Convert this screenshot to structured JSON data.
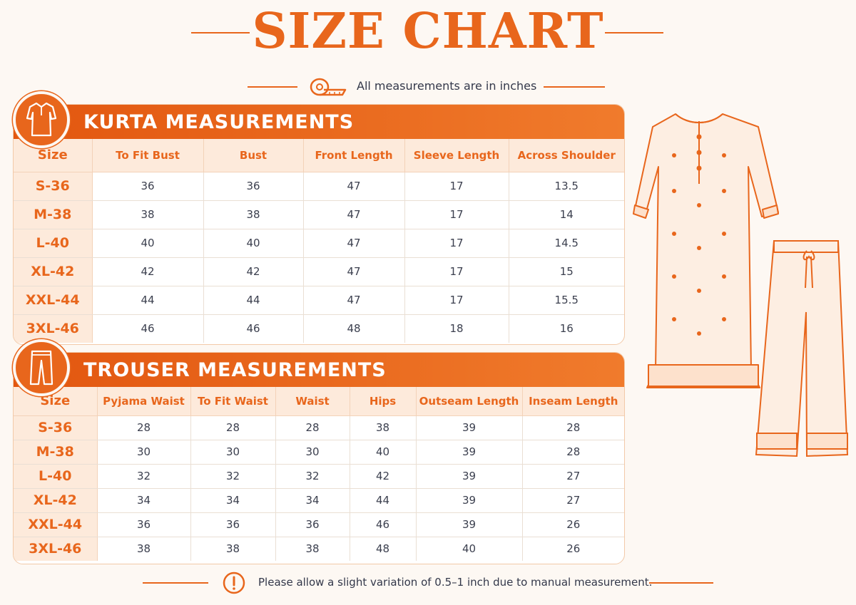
{
  "title": "SIZE CHART",
  "subtitle": "All measurements are in inches",
  "footer_note": "Please allow a slight variation of 0.5–1 inch due to manual measurement.",
  "colors": {
    "accent": "#e8661c",
    "header_bg": "#fdeadb",
    "text": "#2c2f3e"
  },
  "icons": {
    "subtitle": "measuring-tape-icon",
    "kurta": "kurta-icon",
    "trouser": "trouser-icon",
    "footer": "warning-icon"
  },
  "kurta": {
    "heading": "KURTA MEASUREMENTS",
    "columns": [
      "Size",
      "To Fit Bust",
      "Bust",
      "Front Length",
      "Sleeve Length",
      "Across Shoulder"
    ],
    "rows": [
      [
        "S-36",
        "36",
        "36",
        "47",
        "17",
        "13.5"
      ],
      [
        "M-38",
        "38",
        "38",
        "47",
        "17",
        "14"
      ],
      [
        "L-40",
        "40",
        "40",
        "47",
        "17",
        "14.5"
      ],
      [
        "XL-42",
        "42",
        "42",
        "47",
        "17",
        "15"
      ],
      [
        "XXL-44",
        "44",
        "44",
        "47",
        "17",
        "15.5"
      ],
      [
        "3XL-46",
        "46",
        "46",
        "48",
        "18",
        "16"
      ]
    ]
  },
  "trouser": {
    "heading": "TROUSER MEASUREMENTS",
    "columns": [
      "Size",
      "Pyjama Waist",
      "To Fit Waist",
      "Waist",
      "Hips",
      "Outseam Length",
      "Inseam Length"
    ],
    "rows": [
      [
        "S-36",
        "28",
        "28",
        "28",
        "38",
        "39",
        "28"
      ],
      [
        "M-38",
        "30",
        "30",
        "30",
        "40",
        "39",
        "28"
      ],
      [
        "L-40",
        "32",
        "32",
        "32",
        "42",
        "39",
        "27"
      ],
      [
        "XL-42",
        "34",
        "34",
        "34",
        "44",
        "39",
        "27"
      ],
      [
        "XXL-44",
        "36",
        "36",
        "36",
        "46",
        "39",
        "26"
      ],
      [
        "3XL-46",
        "38",
        "38",
        "38",
        "48",
        "40",
        "26"
      ]
    ]
  }
}
